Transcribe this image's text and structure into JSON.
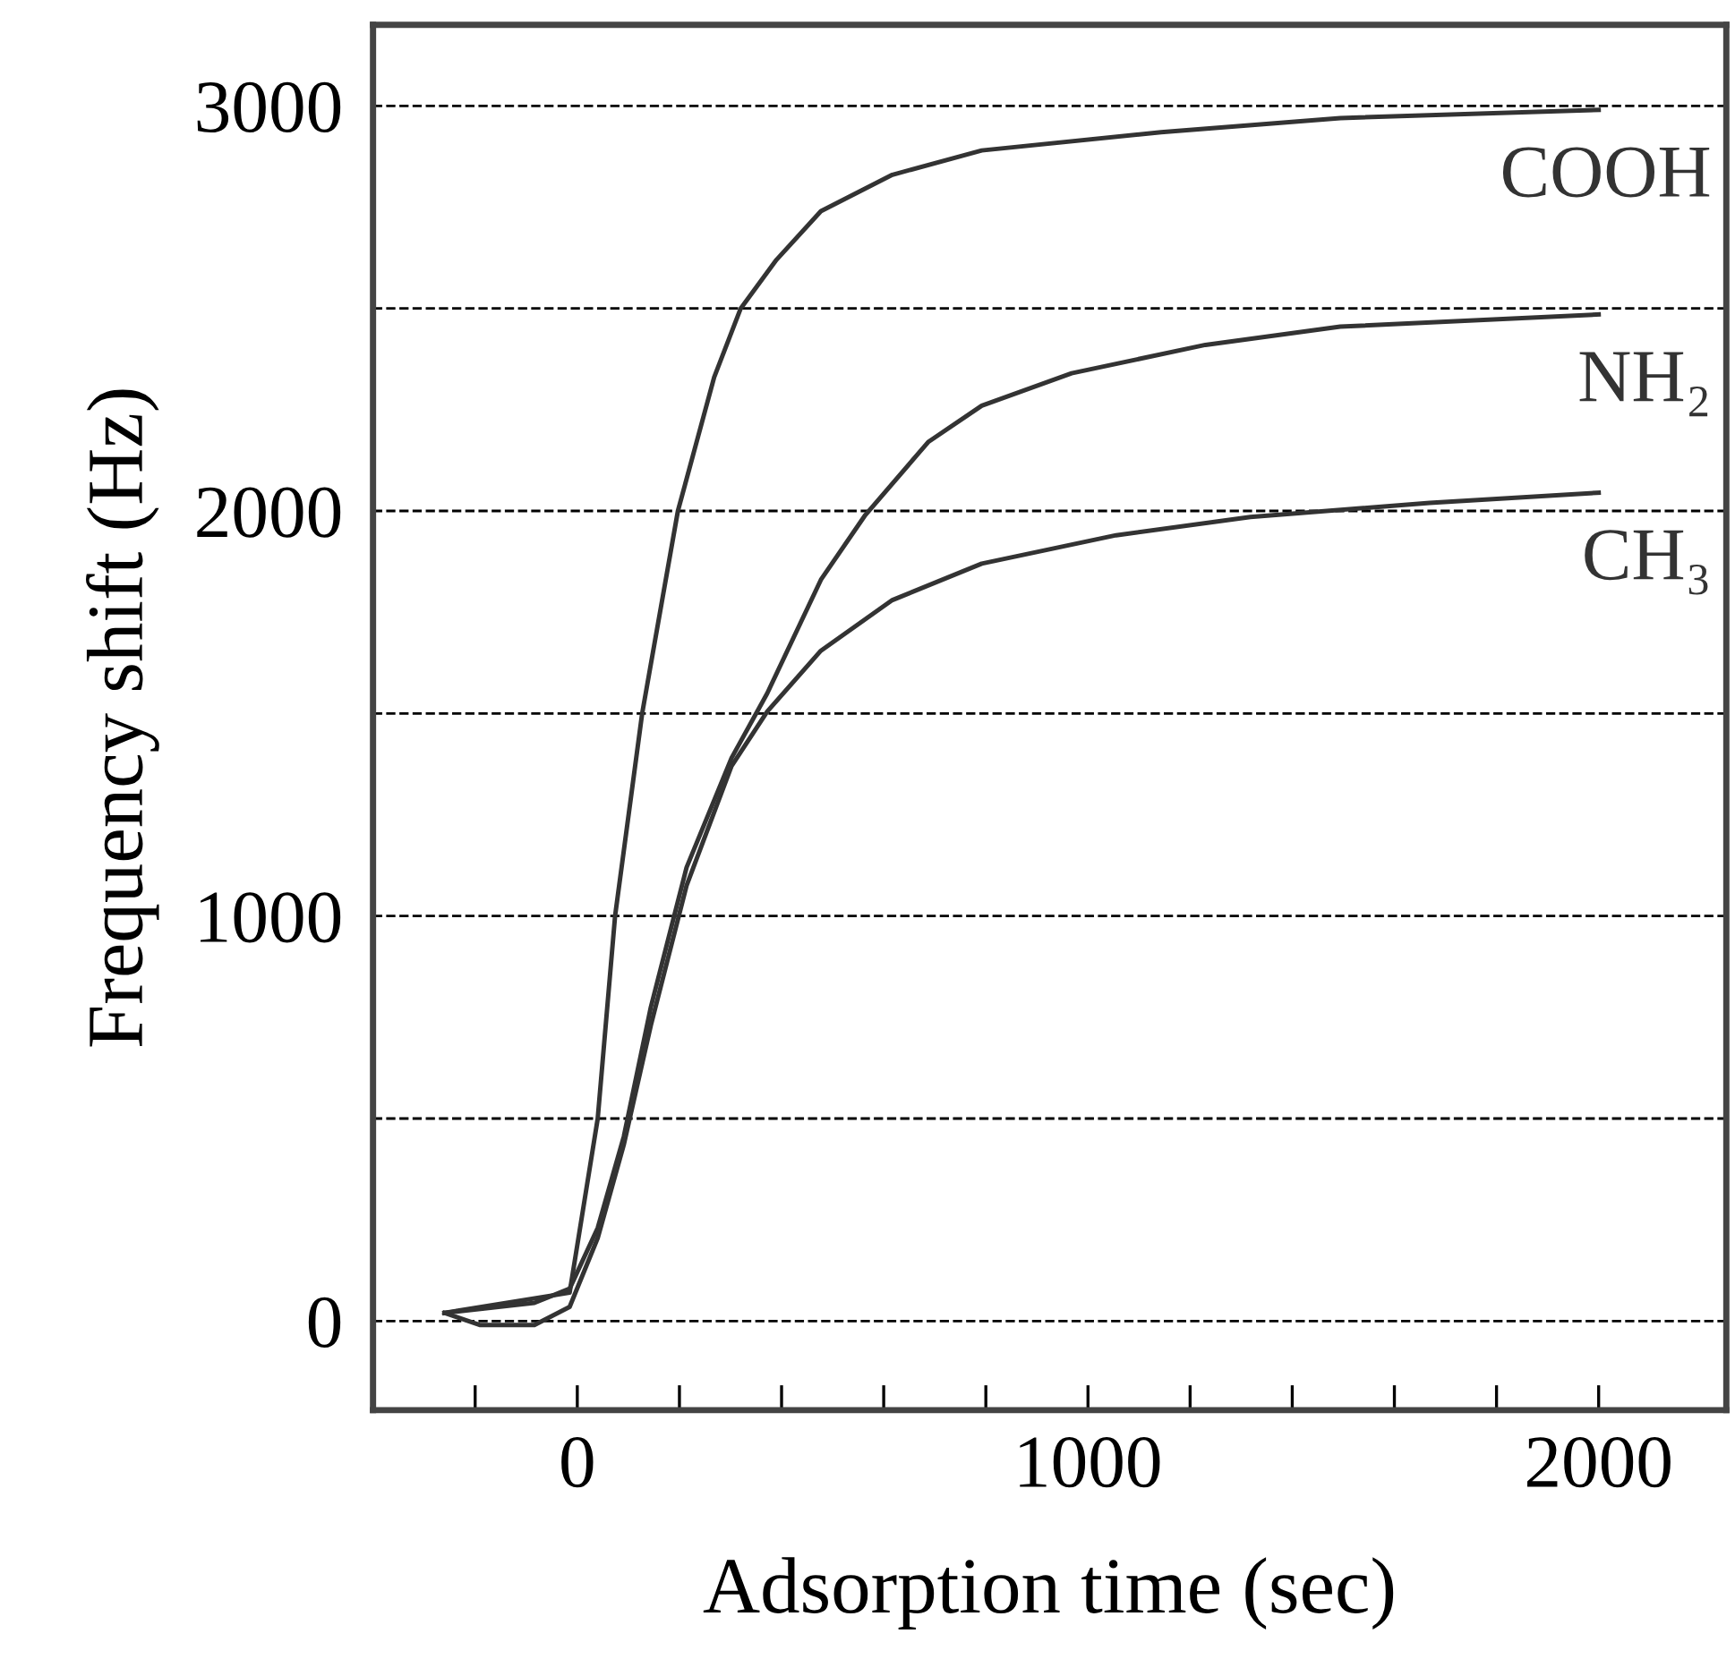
{
  "chart_data": {
    "type": "line",
    "xlabel": "Adsorption time (sec)",
    "ylabel": "Frequency shift (Hz)",
    "xlim": [
      -400,
      2250
    ],
    "ylim": [
      -220,
      3200
    ],
    "xticks": [
      {
        "value": -200,
        "label": null
      },
      0,
      {
        "value": 200,
        "label": null
      },
      {
        "value": 400,
        "label": null
      },
      {
        "value": 600,
        "label": null
      },
      {
        "value": 800,
        "label": null
      },
      1000,
      {
        "value": 1200,
        "label": null
      },
      {
        "value": 1400,
        "label": null
      },
      {
        "value": 1600,
        "label": null
      },
      {
        "value": 1800,
        "label": null
      },
      2000
    ],
    "yticks": [
      0,
      {
        "value": 500,
        "label": null
      },
      1000,
      {
        "value": 1500,
        "label": null
      },
      2000,
      {
        "value": 2500,
        "label": null
      },
      3000
    ],
    "grid": "y",
    "legend": false,
    "marker": "none",
    "line_style": "solid",
    "series": [
      {
        "name": "COOH",
        "color": "#333333",
        "x": [
          -260,
          -15,
          40,
          74,
          127,
          197,
          268,
          320,
          390,
          477,
          617,
          792,
          1143,
          1494,
          2000
        ],
        "values": [
          20,
          70,
          500,
          1000,
          1500,
          2000,
          2330,
          2500,
          2620,
          2740,
          2830,
          2890,
          2935,
          2970,
          2990
        ]
      },
      {
        "name": "NH₂",
        "color": "#333333",
        "x": [
          -260,
          -84,
          -15,
          40,
          91,
          144,
          214,
          302,
          372,
          477,
          564,
          687,
          792,
          968,
          1230,
          1494,
          2000
        ],
        "values": [
          20,
          45,
          80,
          230,
          455,
          775,
          1120,
          1390,
          1550,
          1830,
          1990,
          2170,
          2260,
          2340,
          2410,
          2455,
          2485
        ]
      },
      {
        "name": "CH₃",
        "color": "#333333",
        "x": [
          -260,
          -190,
          -84,
          -15,
          40,
          91,
          144,
          214,
          302,
          372,
          477,
          617,
          792,
          1055,
          1318,
          1669,
          2000
        ],
        "values": [
          20,
          -10,
          -10,
          35,
          205,
          435,
          730,
          1075,
          1370,
          1505,
          1655,
          1780,
          1870,
          1940,
          1985,
          2020,
          2045
        ]
      }
    ]
  }
}
